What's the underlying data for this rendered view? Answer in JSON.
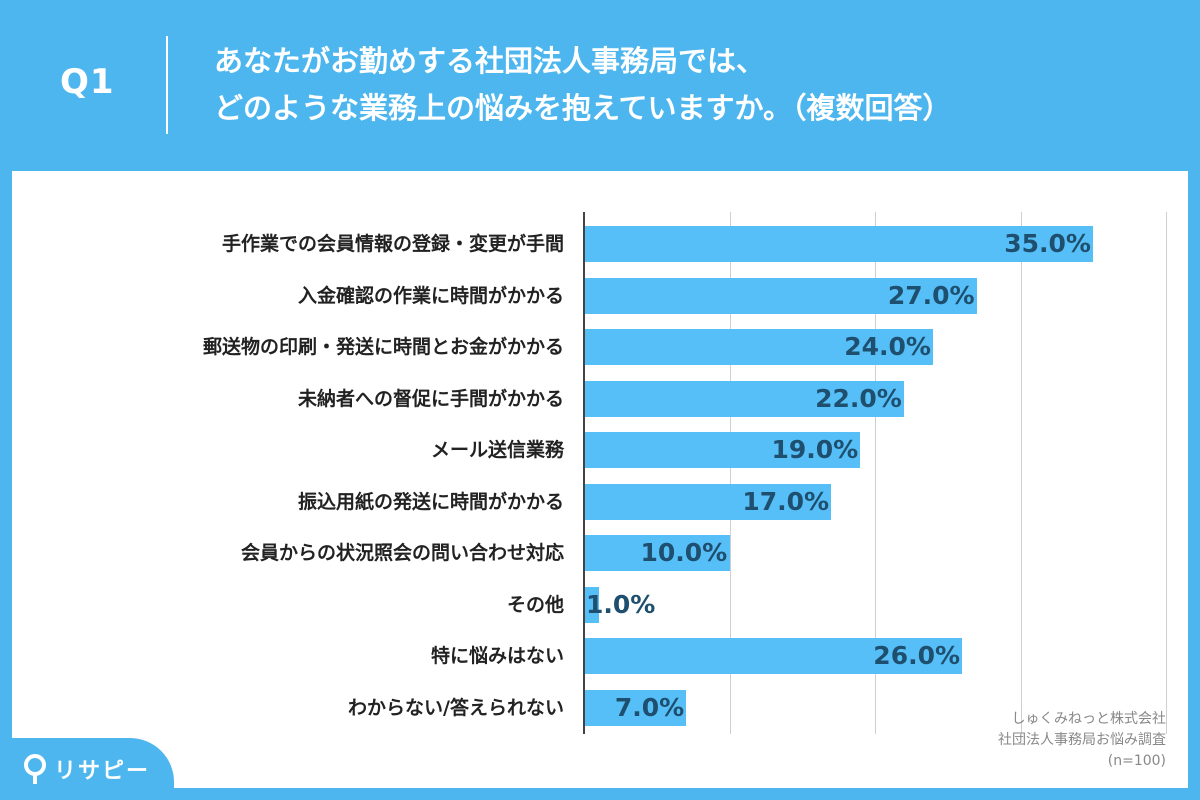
{
  "header": {
    "q_label": "Q1",
    "question_line1": "あなたがお勤めする社団法人事務局では、",
    "question_line2": "どのような業務上の悩みを抱えていますか。（複数回答）"
  },
  "chart_data": {
    "type": "bar",
    "orientation": "horizontal",
    "categories": [
      "手作業での会員情報の登録・変更が手間",
      "入金確認の作業に時間がかかる",
      "郵送物の印刷・発送に時間とお金がかかる",
      "未納者への督促に手間がかかる",
      "メール送信業務",
      "振込用紙の発送に時間がかかる",
      "会員からの状況照会の問い合わせ対応",
      "その他",
      "特に悩みはない",
      "わからない/答えられない"
    ],
    "values": [
      35.0,
      27.0,
      24.0,
      22.0,
      19.0,
      17.0,
      10.0,
      1.0,
      26.0,
      7.0
    ],
    "value_labels": [
      "35.0%",
      "27.0%",
      "24.0%",
      "22.0%",
      "19.0%",
      "17.0%",
      "10.0%",
      "1.0%",
      "26.0%",
      "7.0%"
    ],
    "xlim": [
      0,
      40
    ],
    "grid": true,
    "bar_color": "#57bff7"
  },
  "source": {
    "line1": "しゅくみねっと株式会社",
    "line2": "社団法人事務局お悩み調査",
    "line3": "(n=100)"
  },
  "logo": {
    "text": "リサピー",
    "icon": "map-pin-icon"
  },
  "colors": {
    "background": "#4db6ee",
    "bar": "#57bff7",
    "value_text": "#1e4f6e"
  }
}
